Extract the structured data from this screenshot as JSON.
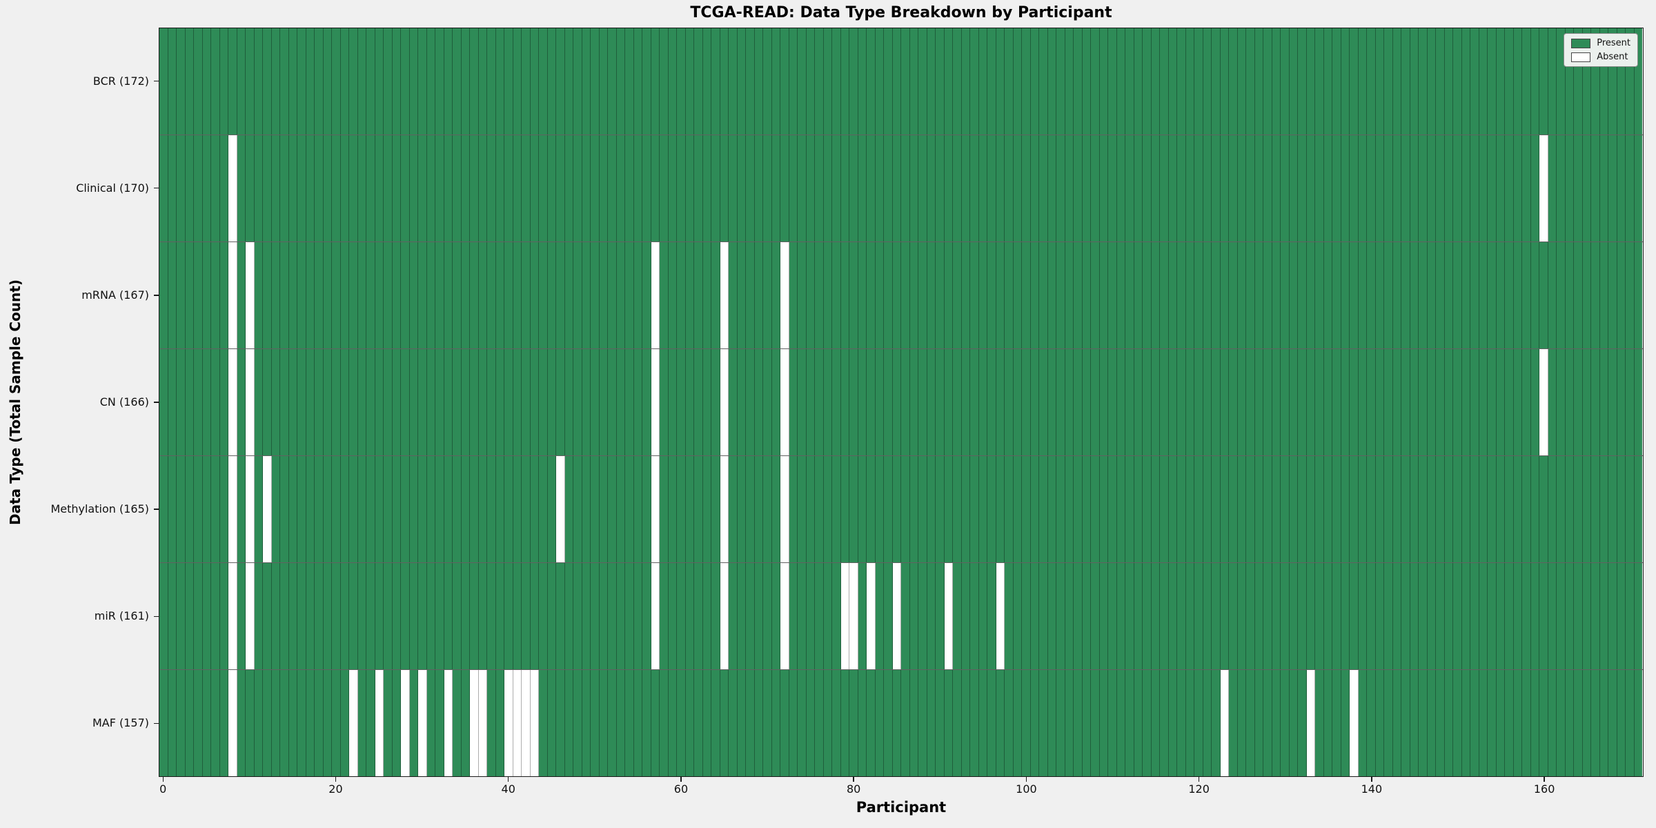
{
  "figure": {
    "background_color": "#f0f0f0",
    "present_color": "#2e8b57",
    "absent_color": "#ffffff"
  },
  "legend": {
    "present_label": "Present",
    "absent_label": "Absent"
  },
  "chart_data": {
    "type": "heatmap",
    "title": "TCGA-READ: Data Type Breakdown by Participant",
    "xlabel": "Participant",
    "ylabel": "Data Type (Total Sample Count)",
    "n_participants": 172,
    "x_range": [
      -0.5,
      171.5
    ],
    "x_ticks": [
      0,
      20,
      40,
      60,
      80,
      100,
      120,
      140,
      160
    ],
    "grid": true,
    "legend_position": "upper right",
    "legend_entries": [
      "Present",
      "Absent"
    ],
    "cell_values": "1 = present (green), 0 = absent (white)",
    "rows": [
      {
        "data_type": "BCR",
        "label": "BCR (172)",
        "total_sample_count": 172,
        "absent_participants": []
      },
      {
        "data_type": "Clinical",
        "label": "Clinical (170)",
        "total_sample_count": 170,
        "absent_participants": [
          8,
          160
        ]
      },
      {
        "data_type": "mRNA",
        "label": "mRNA (167)",
        "total_sample_count": 167,
        "absent_participants": [
          8,
          10,
          57,
          65,
          72
        ]
      },
      {
        "data_type": "CN",
        "label": "CN (166)",
        "total_sample_count": 166,
        "absent_participants": [
          8,
          10,
          57,
          65,
          72,
          160
        ]
      },
      {
        "data_type": "Methylation",
        "label": "Methylation (165)",
        "total_sample_count": 165,
        "absent_participants": [
          8,
          10,
          12,
          46,
          57,
          65,
          72
        ]
      },
      {
        "data_type": "miR",
        "label": "miR (161)",
        "total_sample_count": 161,
        "absent_participants": [
          8,
          10,
          57,
          65,
          72,
          79,
          80,
          82,
          85,
          91,
          97
        ]
      },
      {
        "data_type": "MAF",
        "label": "MAF (157)",
        "total_sample_count": 157,
        "absent_participants": [
          8,
          22,
          25,
          28,
          30,
          33,
          36,
          37,
          40,
          41,
          42,
          43,
          123,
          133,
          138
        ]
      }
    ]
  }
}
